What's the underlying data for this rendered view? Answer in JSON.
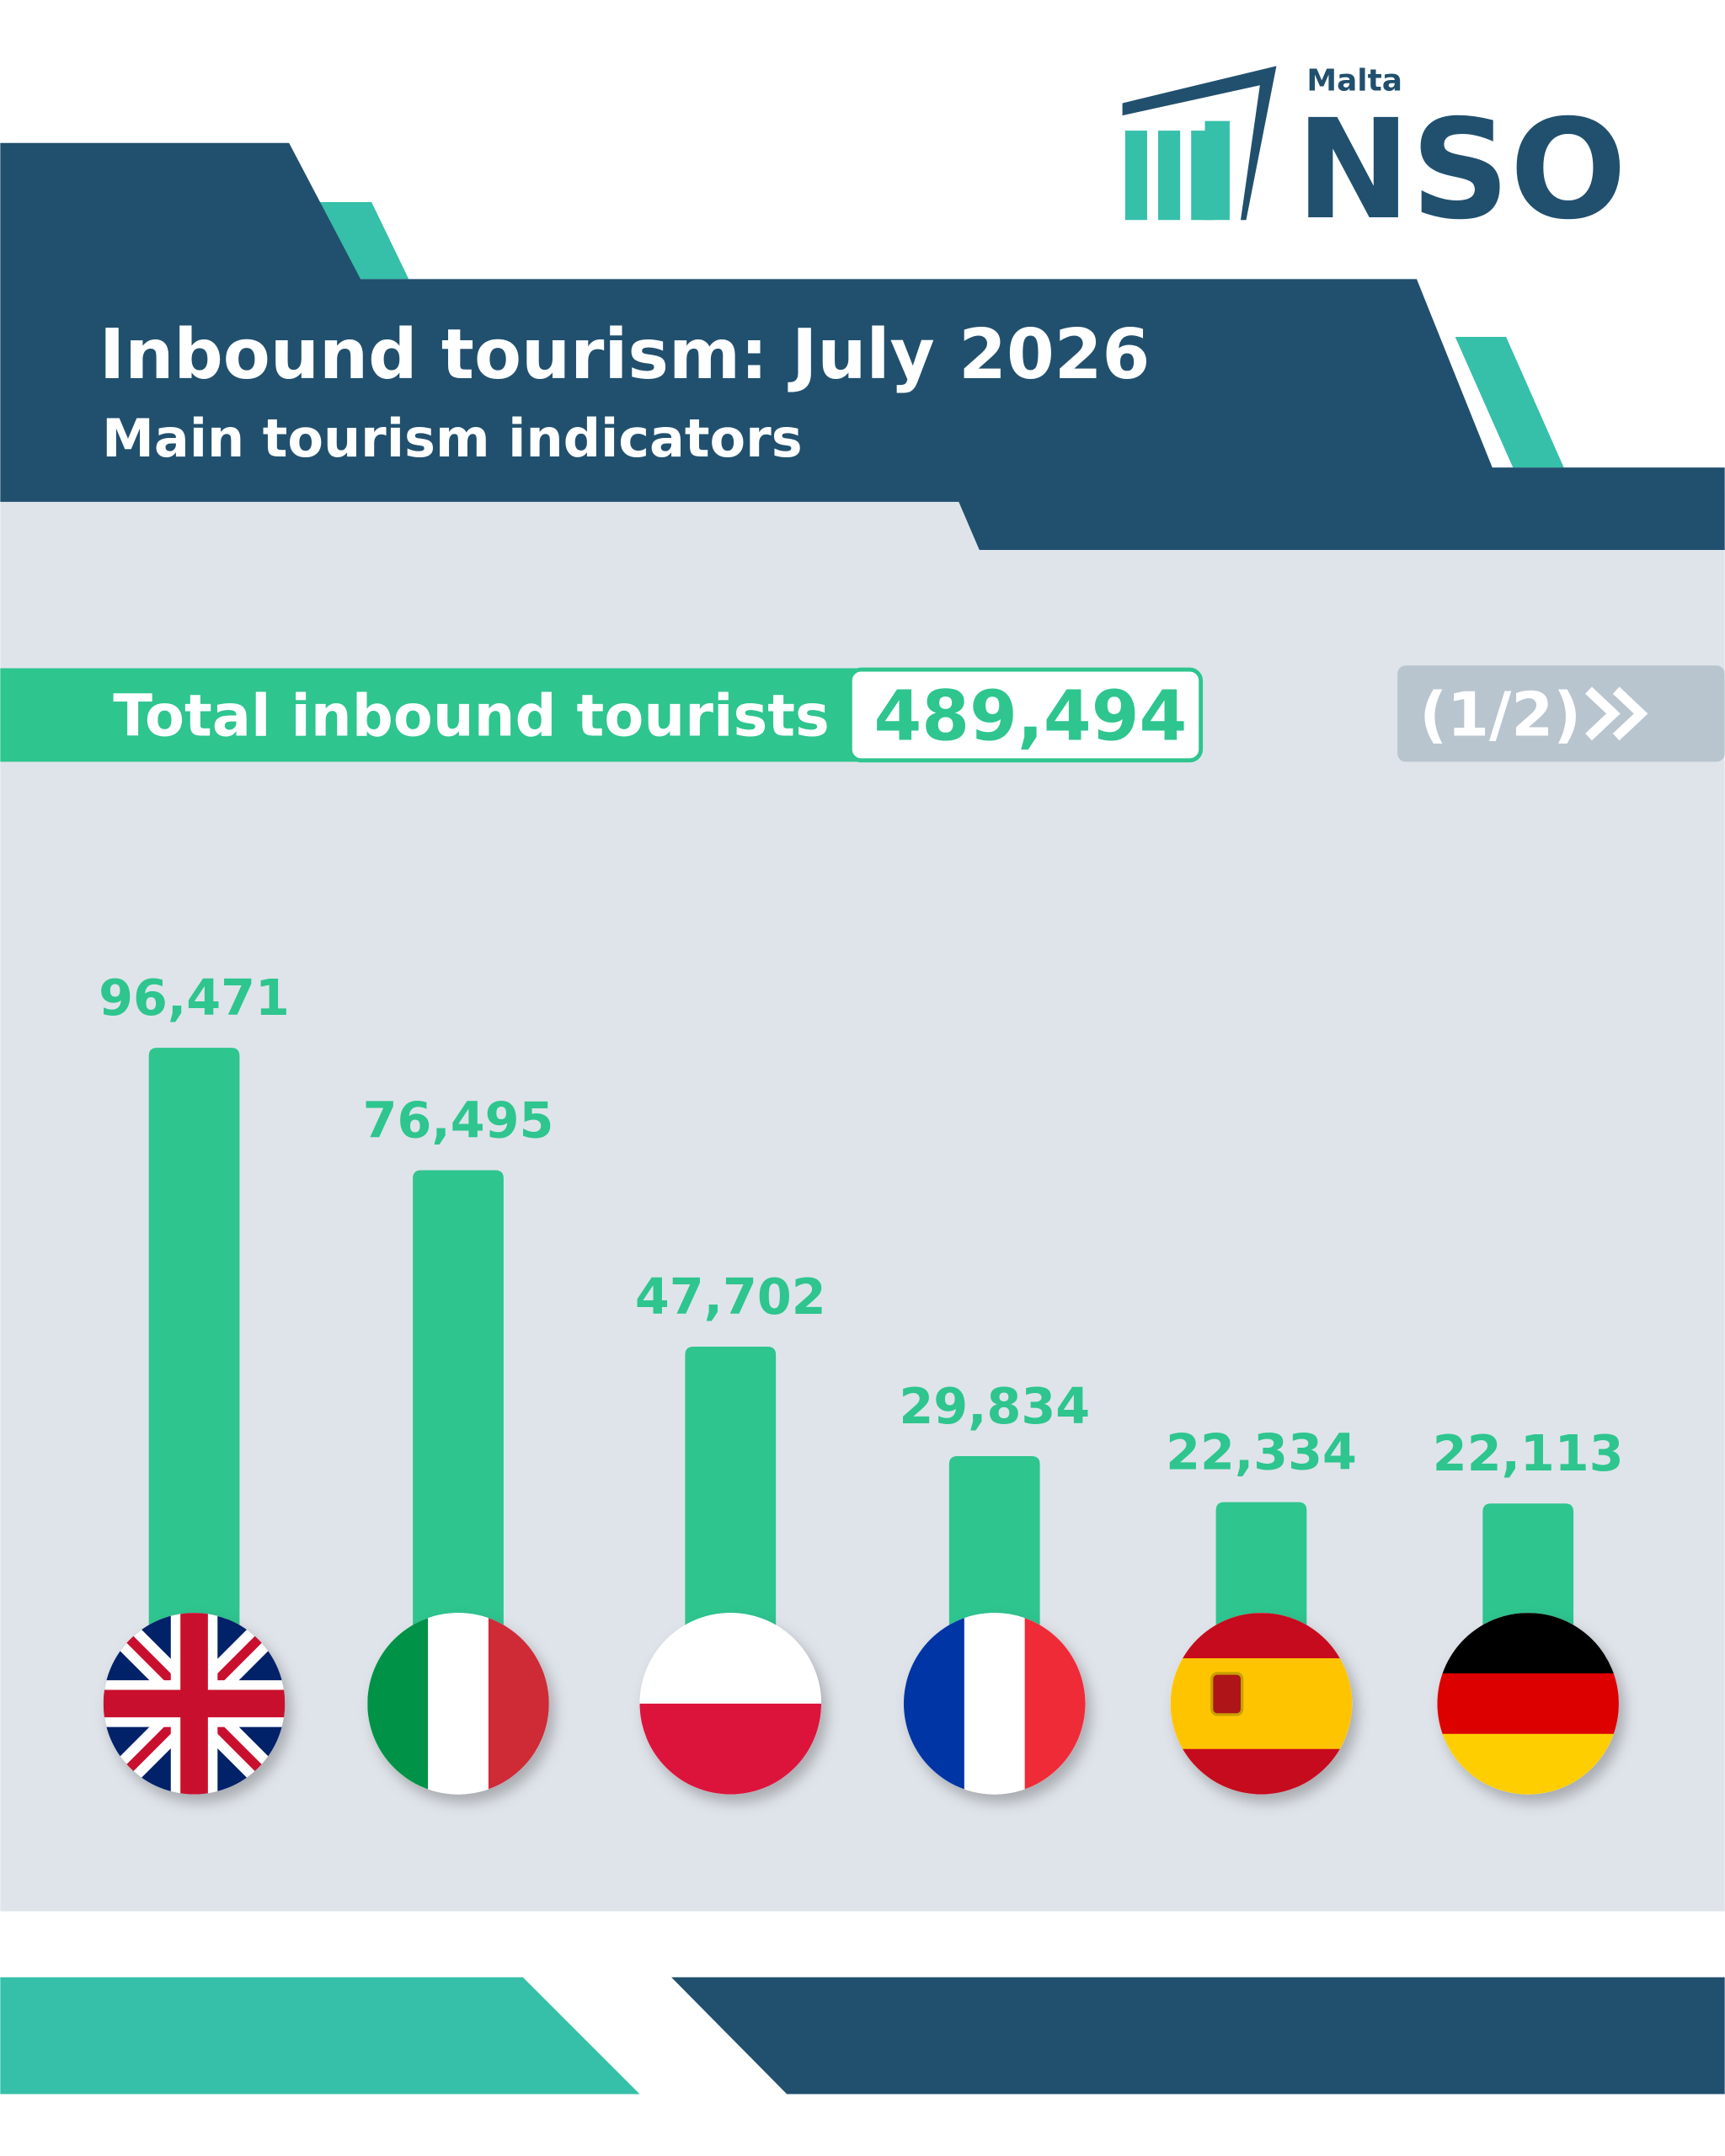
{
  "header": {
    "logo_small": "Malta",
    "logo": "NSO",
    "title": "Inbound tourism: July 2026",
    "subtitle": "Main tourism indicators"
  },
  "total": {
    "label": "Total inbound tourists",
    "value": "489,494"
  },
  "pager": "(1/2)",
  "chart_data": {
    "type": "bar",
    "categories": [
      null,
      null,
      null,
      null,
      null,
      null
    ],
    "values": [
      96471,
      76495,
      47702,
      29834,
      22334,
      22113
    ],
    "value_labels": [
      "96,471",
      "76,495",
      "47,702",
      "29,834",
      "22,334",
      "22,113"
    ],
    "color": "#2ec58f"
  }
}
